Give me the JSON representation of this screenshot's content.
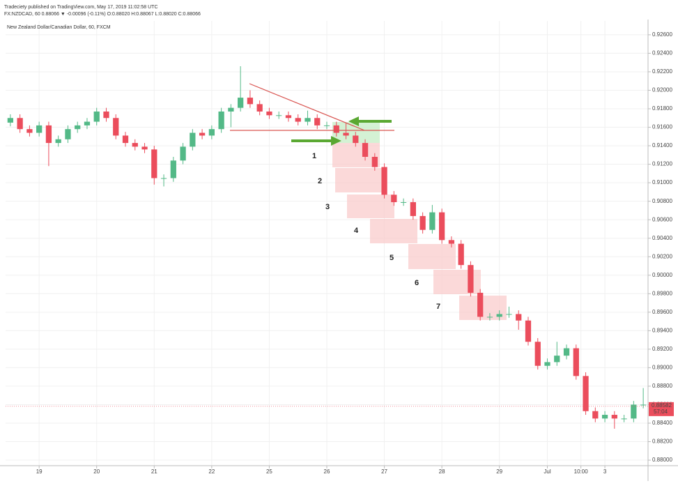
{
  "chart_data": {
    "type": "candlestick",
    "publisher_line": "Tradeciety published on TradingView.com, May 17, 2019 11:02:58 UTC",
    "symbol_line": "FX:NZDCAD, 60 0.88066 ▼ -0.00096 (-0.11%) O:0.88020 H:0.88067 L:0.88020 C:0.88066",
    "title": "New Zealand Dollar/Canadian Dollar, 60, FXCM",
    "up_color": "#53b987",
    "down_color": "#eb4d5c",
    "grid": true,
    "xlim": [
      -14,
      254
    ],
    "ylim": [
      0.8794,
      0.9275
    ],
    "xticks": [
      {
        "value": 0,
        "label": "19"
      },
      {
        "value": 24,
        "label": "20"
      },
      {
        "value": 48,
        "label": "21"
      },
      {
        "value": 72,
        "label": "22"
      },
      {
        "value": 96,
        "label": "25"
      },
      {
        "value": 120,
        "label": "26"
      },
      {
        "value": 144,
        "label": "27"
      },
      {
        "value": 168,
        "label": "28"
      },
      {
        "value": 192,
        "label": "29"
      },
      {
        "value": 212,
        "label": "Jul"
      },
      {
        "value": 226,
        "label": "10:00"
      },
      {
        "value": 236,
        "label": "3"
      }
    ],
    "yticks": [
      {
        "value": 0.926,
        "label": "0.92600"
      },
      {
        "value": 0.924,
        "label": "0.92400"
      },
      {
        "value": 0.922,
        "label": "0.92200"
      },
      {
        "value": 0.92,
        "label": "0.92000"
      },
      {
        "value": 0.918,
        "label": "0.91800"
      },
      {
        "value": 0.916,
        "label": "0.91600"
      },
      {
        "value": 0.914,
        "label": "0.91400"
      },
      {
        "value": 0.912,
        "label": "0.91200"
      },
      {
        "value": 0.91,
        "label": "0.91000"
      },
      {
        "value": 0.908,
        "label": "0.90800"
      },
      {
        "value": 0.906,
        "label": "0.90600"
      },
      {
        "value": 0.904,
        "label": "0.90400"
      },
      {
        "value": 0.902,
        "label": "0.90200"
      },
      {
        "value": 0.9,
        "label": "0.90000"
      },
      {
        "value": 0.898,
        "label": "0.89800"
      },
      {
        "value": 0.896,
        "label": "0.89600"
      },
      {
        "value": 0.894,
        "label": "0.89400"
      },
      {
        "value": 0.892,
        "label": "0.89200"
      },
      {
        "value": 0.89,
        "label": "0.89000"
      },
      {
        "value": 0.888,
        "label": "0.88800"
      },
      {
        "value": 0.886,
        "label": "0.88600"
      },
      {
        "value": 0.884,
        "label": "0.88400"
      },
      {
        "value": 0.882,
        "label": "0.88200"
      },
      {
        "value": 0.88,
        "label": "0.88000"
      }
    ],
    "x": [
      -12,
      -8,
      -4,
      0,
      4,
      8,
      12,
      16,
      20,
      24,
      28,
      32,
      36,
      40,
      44,
      48,
      52,
      56,
      60,
      64,
      68,
      72,
      76,
      80,
      84,
      88,
      92,
      96,
      100,
      104,
      108,
      112,
      116,
      120,
      124,
      128,
      132,
      136,
      140,
      144,
      148,
      152,
      156,
      160,
      164,
      168,
      172,
      176,
      180,
      184,
      188,
      192,
      196,
      200,
      204,
      208,
      212,
      216,
      220,
      224,
      228,
      232,
      236,
      240,
      244,
      248,
      252
    ],
    "open": [
      0.9165,
      0.917,
      0.9158,
      0.9154,
      0.9162,
      0.9143,
      0.9147,
      0.9158,
      0.9162,
      0.9166,
      0.9177,
      0.917,
      0.9151,
      0.9143,
      0.9139,
      0.9136,
      0.9105,
      0.9105,
      0.9124,
      0.9139,
      0.9154,
      0.9151,
      0.9158,
      0.9177,
      0.9181,
      0.9192,
      0.9185,
      0.9177,
      0.9173,
      0.9173,
      0.917,
      0.9166,
      0.917,
      0.9162,
      0.9162,
      0.9154,
      0.9151,
      0.9143,
      0.9128,
      0.9117,
      0.9087,
      0.9079,
      0.9079,
      0.9064,
      0.9049,
      0.9068,
      0.9038,
      0.9034,
      0.9011,
      0.8981,
      0.8955,
      0.8955,
      0.8958,
      0.8958,
      0.8951,
      0.8928,
      0.8902,
      0.8906,
      0.8913,
      0.8921,
      0.8891,
      0.8853,
      0.8845,
      0.8849,
      0.8845,
      0.8845,
      0.886
    ],
    "high": [
      0.9174,
      0.9174,
      0.9162,
      0.9166,
      0.9166,
      0.9151,
      0.9162,
      0.9166,
      0.917,
      0.9181,
      0.9181,
      0.9174,
      0.9155,
      0.9147,
      0.9143,
      0.914,
      0.9109,
      0.9128,
      0.9143,
      0.9158,
      0.9158,
      0.9162,
      0.9181,
      0.9185,
      0.9226,
      0.92,
      0.9189,
      0.9181,
      0.9177,
      0.9177,
      0.9174,
      0.9178,
      0.9174,
      0.9166,
      0.9166,
      0.9165,
      0.9155,
      0.9147,
      0.9132,
      0.9121,
      0.9091,
      0.9083,
      0.9083,
      0.9068,
      0.9076,
      0.9072,
      0.9042,
      0.9038,
      0.9015,
      0.8985,
      0.8959,
      0.8962,
      0.8966,
      0.8962,
      0.8955,
      0.8932,
      0.891,
      0.8928,
      0.8925,
      0.8925,
      0.8895,
      0.8857,
      0.8853,
      0.8853,
      0.8849,
      0.8864,
      0.8878
    ],
    "low": [
      0.9161,
      0.9154,
      0.915,
      0.915,
      0.9118,
      0.9139,
      0.9143,
      0.9154,
      0.9158,
      0.9162,
      0.9166,
      0.9147,
      0.9139,
      0.9135,
      0.9132,
      0.9098,
      0.9096,
      0.9101,
      0.912,
      0.9135,
      0.9147,
      0.9147,
      0.9154,
      0.916,
      0.9177,
      0.9181,
      0.9173,
      0.9169,
      0.9169,
      0.9166,
      0.9162,
      0.9162,
      0.9158,
      0.9158,
      0.915,
      0.9147,
      0.9139,
      0.9124,
      0.9113,
      0.9083,
      0.9075,
      0.9075,
      0.906,
      0.9045,
      0.9045,
      0.9034,
      0.903,
      0.9007,
      0.8977,
      0.8951,
      0.8951,
      0.8951,
      0.8954,
      0.8941,
      0.8924,
      0.8898,
      0.8898,
      0.8902,
      0.8909,
      0.8887,
      0.8849,
      0.8841,
      0.8841,
      0.8834,
      0.8841,
      0.8841,
      0.8856
    ],
    "close": [
      0.917,
      0.9158,
      0.9154,
      0.9162,
      0.9143,
      0.9147,
      0.9158,
      0.9162,
      0.9166,
      0.9177,
      0.917,
      0.9151,
      0.9143,
      0.9139,
      0.9136,
      0.9105,
      0.9105,
      0.9124,
      0.9139,
      0.9154,
      0.9151,
      0.9158,
      0.9177,
      0.9181,
      0.9192,
      0.9185,
      0.9177,
      0.9173,
      0.9173,
      0.917,
      0.9166,
      0.917,
      0.9162,
      0.9162,
      0.9154,
      0.9151,
      0.9143,
      0.9128,
      0.9117,
      0.9087,
      0.9079,
      0.9079,
      0.9064,
      0.9049,
      0.9068,
      0.9038,
      0.9034,
      0.9011,
      0.8981,
      0.8955,
      0.8955,
      0.8958,
      0.8958,
      0.8951,
      0.8928,
      0.8902,
      0.8906,
      0.8913,
      0.8921,
      0.8891,
      0.8853,
      0.8845,
      0.8849,
      0.8845,
      0.8845,
      0.886,
      0.886
    ],
    "last_price": 0.88582,
    "countdown": "57:04",
    "annotations": [
      "1",
      "2",
      "3",
      "4",
      "5",
      "6",
      "7"
    ]
  }
}
